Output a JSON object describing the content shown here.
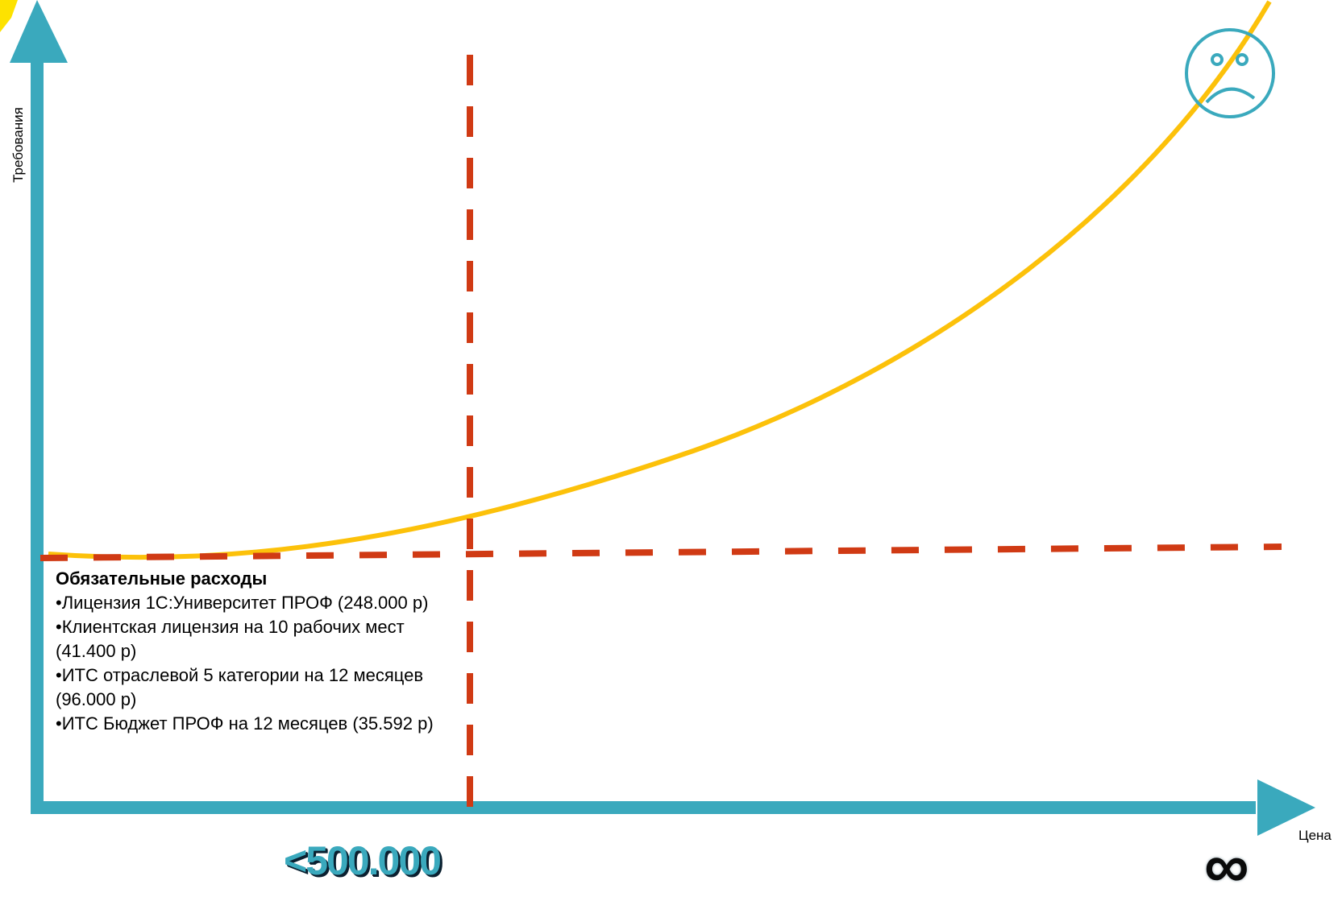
{
  "y_axis_label": "Требования",
  "x_axis_label": "Цена",
  "costs": {
    "title": "Обязательные расходы",
    "items": [
      "Лицензия 1С:Университет ПРОФ (248.000 р)",
      "Клиентская лицензия на 10 рабочих мест (41.400 р)",
      "ИТС отраслевой 5 категории на 12 месяцев (96.000 р)",
      "ИТС Бюджет ПРОФ  на 12 месяцев (35.592 р)"
    ]
  },
  "threshold_label": "<500.000",
  "infinity_symbol": "∞",
  "icons": {
    "sad_face": "sad-face-icon",
    "infinity": "infinity-icon"
  },
  "colors": {
    "axis": "#3aa9bd",
    "curve": "#fcc10a",
    "dashed": "#d03a14",
    "sad_face": "#3aa9bd",
    "corner_accent": "#fde200"
  }
}
